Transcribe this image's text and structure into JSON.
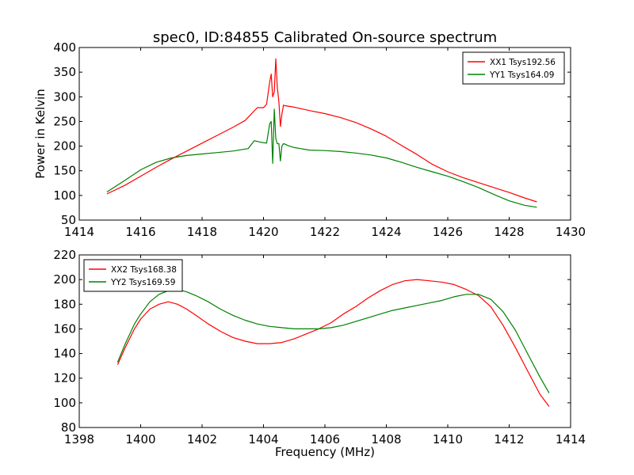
{
  "figure_title": "spec0, ID:84855 Calibrated On-source spectrum",
  "chart_data": [
    {
      "type": "line",
      "title": "spec0, ID:84855 Calibrated On-source spectrum",
      "xlabel": "",
      "ylabel": "Power in Kelvin",
      "xlim": [
        1414,
        1430
      ],
      "ylim": [
        50,
        400
      ],
      "xticks": [
        1414,
        1416,
        1418,
        1420,
        1422,
        1424,
        1426,
        1428,
        1430
      ],
      "yticks": [
        50,
        100,
        150,
        200,
        250,
        300,
        350,
        400
      ],
      "grid": false,
      "legend_position": "top-right",
      "series": [
        {
          "name": "XX1 Tsys192.56",
          "color": "#ff0000",
          "x": [
            1414.9,
            1415.5,
            1416.0,
            1416.5,
            1417.0,
            1417.5,
            1418.0,
            1418.5,
            1419.0,
            1419.4,
            1419.6,
            1419.8,
            1420.0,
            1420.1,
            1420.2,
            1420.25,
            1420.3,
            1420.35,
            1420.4,
            1420.45,
            1420.5,
            1420.55,
            1420.6,
            1420.65,
            1420.7,
            1420.8,
            1421.0,
            1421.5,
            1422.0,
            1422.5,
            1423.0,
            1423.5,
            1424.0,
            1424.5,
            1425.0,
            1425.5,
            1426.0,
            1426.5,
            1427.0,
            1427.5,
            1428.0,
            1428.5,
            1428.9
          ],
          "y": [
            103,
            121,
            139,
            157,
            174,
            190,
            206,
            222,
            238,
            252,
            265,
            278,
            278,
            285,
            330,
            346,
            300,
            310,
            377,
            320,
            290,
            240,
            265,
            283,
            282,
            281,
            279,
            272,
            266,
            258,
            248,
            235,
            220,
            201,
            183,
            163,
            148,
            136,
            126,
            116,
            106,
            95,
            87
          ]
        },
        {
          "name": "YY1 Tsys164.09",
          "color": "#008000",
          "x": [
            1414.9,
            1415.5,
            1416.0,
            1416.5,
            1417.0,
            1417.5,
            1418.0,
            1418.5,
            1419.0,
            1419.5,
            1419.7,
            1419.9,
            1420.1,
            1420.2,
            1420.25,
            1420.3,
            1420.35,
            1420.4,
            1420.45,
            1420.5,
            1420.55,
            1420.6,
            1420.65,
            1420.7,
            1420.8,
            1421.0,
            1421.5,
            1422.0,
            1422.5,
            1423.0,
            1423.5,
            1424.0,
            1424.5,
            1425.0,
            1425.5,
            1426.0,
            1426.5,
            1427.0,
            1427.5,
            1428.0,
            1428.5,
            1428.9
          ],
          "y": [
            107,
            131,
            152,
            167,
            176,
            181,
            184,
            187,
            190,
            195,
            211,
            208,
            206,
            245,
            250,
            165,
            275,
            215,
            205,
            205,
            170,
            200,
            205,
            204,
            201,
            197,
            192,
            191,
            189,
            186,
            182,
            176,
            167,
            157,
            148,
            139,
            128,
            116,
            102,
            89,
            80,
            76
          ]
        }
      ]
    },
    {
      "type": "line",
      "title": "",
      "xlabel": "Frequency (MHz)",
      "ylabel": "",
      "xlim": [
        1398,
        1414
      ],
      "ylim": [
        80,
        220
      ],
      "xticks": [
        1398,
        1400,
        1402,
        1404,
        1406,
        1408,
        1410,
        1412,
        1414
      ],
      "yticks": [
        80,
        100,
        120,
        140,
        160,
        180,
        200,
        220
      ],
      "grid": false,
      "legend_position": "top-left",
      "series": [
        {
          "name": "XX2 Tsys168.38",
          "color": "#ff0000",
          "x": [
            1399.25,
            1399.5,
            1399.8,
            1400.0,
            1400.3,
            1400.6,
            1400.9,
            1401.2,
            1401.5,
            1401.8,
            1402.2,
            1402.6,
            1403.0,
            1403.4,
            1403.8,
            1404.2,
            1404.6,
            1405.0,
            1405.4,
            1405.8,
            1406.2,
            1406.6,
            1407.0,
            1407.4,
            1407.8,
            1408.2,
            1408.6,
            1409.0,
            1409.4,
            1409.8,
            1410.2,
            1410.6,
            1411.0,
            1411.4,
            1411.8,
            1412.2,
            1412.6,
            1413.0,
            1413.3
          ],
          "y": [
            131,
            145,
            160,
            168,
            176,
            180,
            182,
            180,
            176,
            171,
            164,
            158,
            153,
            150,
            148,
            148,
            149,
            152,
            156,
            160,
            165,
            172,
            178,
            185,
            191,
            196,
            199,
            200,
            199,
            198,
            196,
            192,
            187,
            178,
            163,
            145,
            126,
            107,
            97
          ]
        },
        {
          "name": "YY2 Tsys169.59",
          "color": "#008000",
          "x": [
            1399.25,
            1399.5,
            1399.8,
            1400.0,
            1400.3,
            1400.6,
            1400.9,
            1401.2,
            1401.5,
            1401.8,
            1402.2,
            1402.6,
            1403.0,
            1403.4,
            1403.8,
            1404.2,
            1404.6,
            1405.0,
            1405.4,
            1405.8,
            1406.2,
            1406.6,
            1407.0,
            1407.4,
            1407.8,
            1408.2,
            1408.6,
            1409.0,
            1409.4,
            1409.8,
            1410.2,
            1410.6,
            1411.0,
            1411.4,
            1411.8,
            1412.2,
            1412.6,
            1413.0,
            1413.3
          ],
          "y": [
            133,
            148,
            164,
            172,
            182,
            188,
            191,
            192,
            190,
            187,
            182,
            176,
            171,
            167,
            164,
            162,
            161,
            160,
            160,
            160,
            161,
            163,
            166,
            169,
            172,
            175,
            177,
            179,
            181,
            183,
            186,
            188,
            188,
            184,
            174,
            159,
            140,
            121,
            108
          ]
        }
      ]
    }
  ]
}
